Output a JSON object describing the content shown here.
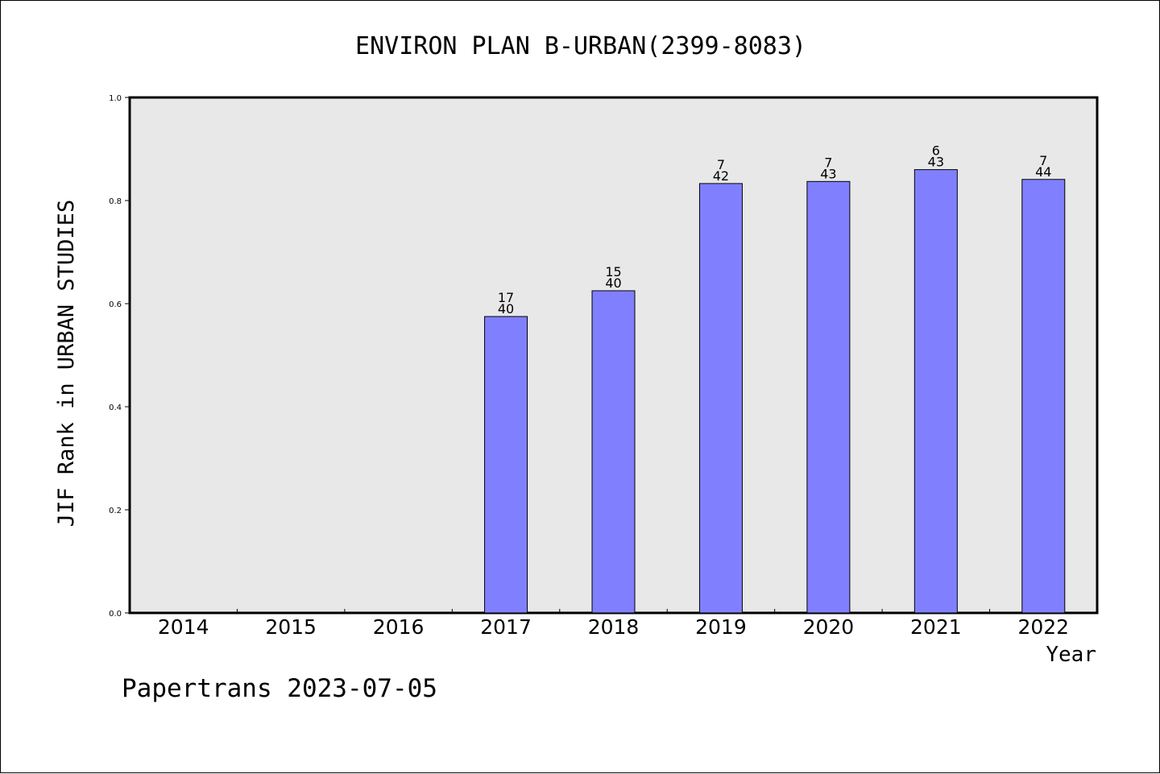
{
  "chart_data": {
    "type": "bar",
    "title": "ENVIRON PLAN B-URBAN(2399-8083)",
    "xlabel": "Year",
    "ylabel": "JIF Rank in URBAN STUDIES",
    "categories": [
      "2014",
      "2015",
      "2016",
      "2017",
      "2018",
      "2019",
      "2020",
      "2021",
      "2022"
    ],
    "values": [
      null,
      null,
      null,
      0.575,
      0.625,
      0.833,
      0.837,
      0.86,
      0.841
    ],
    "rank": [
      null,
      null,
      null,
      "17",
      "15",
      "7",
      "7",
      "6",
      "7"
    ],
    "total": [
      null,
      null,
      null,
      "40",
      "40",
      "42",
      "43",
      "43",
      "44"
    ],
    "ylim": [
      0,
      1.0
    ],
    "yticks": [
      "0.0",
      "0.2",
      "0.4",
      "0.6",
      "0.8",
      "1.0"
    ],
    "grid": false,
    "colors": {
      "bar": "#8080ff",
      "plot_background": "#e8e8e8"
    }
  },
  "footer": "Papertrans 2023-07-05"
}
